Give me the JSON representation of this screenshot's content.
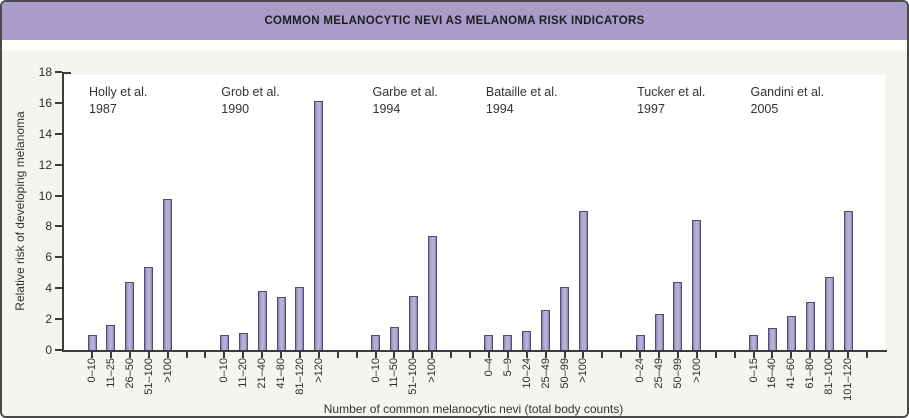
{
  "header": {
    "title": "COMMON MELANOCYTIC NEVI AS MELANOMA RISK INDICATORS"
  },
  "chart_data": {
    "type": "bar",
    "title": "COMMON MELANOCYTIC NEVI AS MELANOMA RISK INDICATORS",
    "xlabel": "Number of common melanocytic nevi (total body counts)",
    "ylabel": "Relative risk of developing melanoma",
    "ylim": [
      0,
      18
    ],
    "ytick_step": 2,
    "grid": false,
    "legend": "none",
    "groups": [
      {
        "study": "Holly et al.",
        "year": "1987",
        "categories": [
          "0–10",
          "11–25",
          "26–50",
          "51–100",
          ">100"
        ],
        "values": [
          1.0,
          1.6,
          4.4,
          5.4,
          9.8
        ]
      },
      {
        "study": "Grob et al.",
        "year": "1990",
        "categories": [
          "0–10",
          "11–20",
          "21–40",
          "41–80",
          "81–120",
          ">120"
        ],
        "values": [
          1.0,
          1.1,
          3.8,
          3.4,
          4.1,
          16.1
        ]
      },
      {
        "study": "Garbe et al.",
        "year": "1994",
        "categories": [
          "0–10",
          "11–50",
          "51–100",
          ">100"
        ],
        "values": [
          1.0,
          1.5,
          3.5,
          7.4
        ]
      },
      {
        "study": "Bataille et al.",
        "year": "1994",
        "categories": [
          "0–4",
          "5–9",
          "10–24",
          "25–49",
          "50–99",
          ">100"
        ],
        "values": [
          1.0,
          1.0,
          1.2,
          2.6,
          4.1,
          9.0
        ]
      },
      {
        "study": "Tucker et al.",
        "year": "1997",
        "categories": [
          "0–24",
          "25–49",
          "50–99",
          ">100"
        ],
        "values": [
          1.0,
          2.3,
          4.4,
          8.4
        ]
      },
      {
        "study": "Gandini et al.",
        "year": "2005",
        "categories": [
          "0–15",
          "16–40",
          "41–60",
          "61–80",
          "81–100",
          "101–120"
        ],
        "values": [
          1.0,
          1.4,
          2.2,
          3.1,
          4.7,
          9.0
        ]
      }
    ]
  },
  "colors": {
    "banner": "#a89cc8",
    "background": "#f6f4ee",
    "plot_background": "#ffffff",
    "axis": "#3b3b3b",
    "text": "#2e2e2e",
    "bar_fill_light": "#b9aed7",
    "bar_edge": "#564c72",
    "border": "#4a4a4a"
  }
}
